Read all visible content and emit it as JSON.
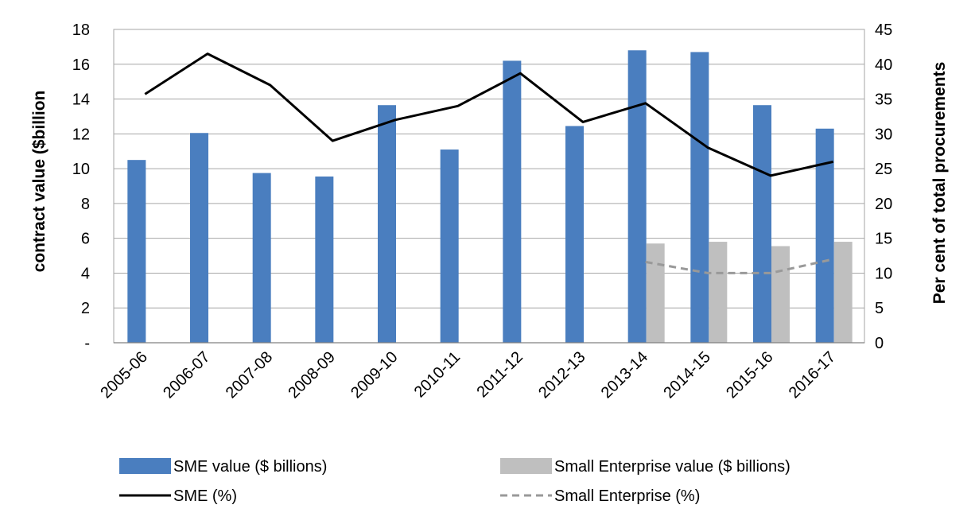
{
  "chart_data": {
    "type": "bar",
    "categories": [
      "2005-06",
      "2006-07",
      "2007-08",
      "2008-09",
      "2009-10",
      "2010-11",
      "2011-12",
      "2012-13",
      "2013-14",
      "2014-15",
      "2015-16",
      "2016-17"
    ],
    "ylabel": "contract value ($billion",
    "y2label": "Per cent of total procurements",
    "ylim": [
      0,
      18
    ],
    "y2lim": [
      0,
      45
    ],
    "yticks": [
      "-",
      "2",
      "4",
      "6",
      "8",
      "10",
      "12",
      "14",
      "16",
      "18"
    ],
    "y2ticks": [
      "0",
      "5",
      "10",
      "15",
      "20",
      "25",
      "30",
      "35",
      "40",
      "45"
    ],
    "grid": true,
    "legend_position": "bottom",
    "series": [
      {
        "name": "SME value ($ billions)",
        "type": "bar",
        "axis": "left",
        "color": "#4a7ebf",
        "values": [
          10.5,
          12.05,
          9.75,
          9.55,
          13.65,
          11.1,
          16.2,
          12.45,
          16.8,
          16.7,
          13.65,
          12.3
        ]
      },
      {
        "name": "Small Enterprise value ($ billions)",
        "type": "bar",
        "axis": "left",
        "color": "#bfbfbf",
        "values": [
          null,
          null,
          null,
          null,
          null,
          null,
          null,
          null,
          5.7,
          5.8,
          5.55,
          5.8
        ]
      },
      {
        "name": "SME (%)",
        "type": "line",
        "axis": "right",
        "color": "#000000",
        "dash": "solid",
        "values": [
          35.7,
          41.5,
          37.0,
          29.0,
          32.0,
          34.0,
          38.7,
          31.7,
          34.4,
          28.0,
          24.0,
          26.0
        ]
      },
      {
        "name": "Small Enterprise (%)",
        "type": "line",
        "axis": "right",
        "color": "#999999",
        "dash": "dashed",
        "values": [
          null,
          null,
          null,
          null,
          null,
          null,
          null,
          null,
          11.6,
          10.0,
          10.0,
          12.0
        ]
      }
    ]
  }
}
